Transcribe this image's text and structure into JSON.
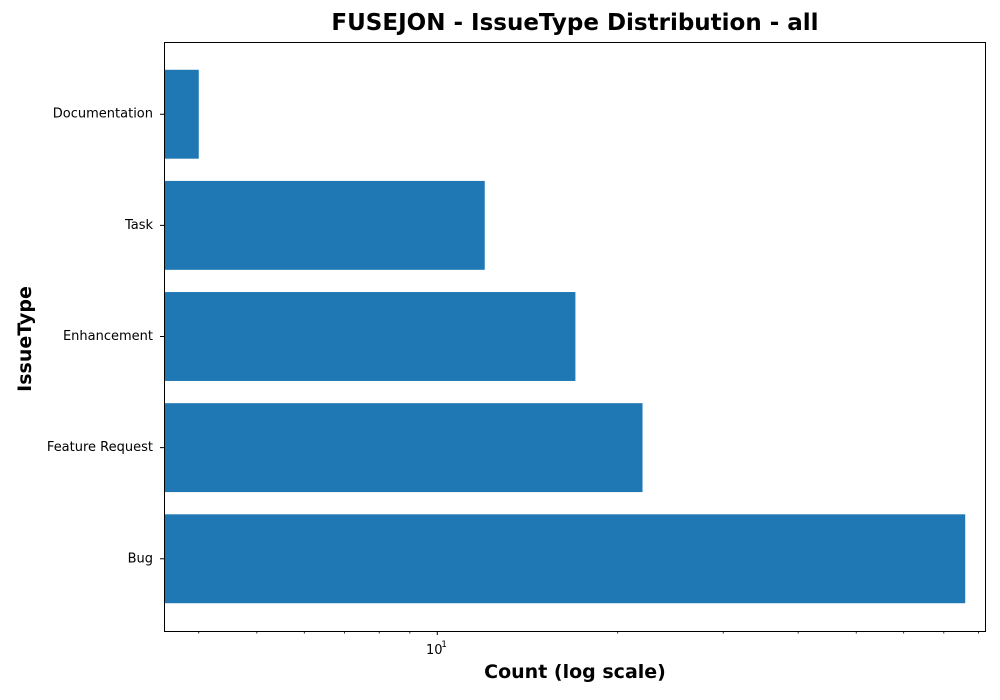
{
  "chart_data": {
    "type": "bar",
    "orientation": "horizontal",
    "title": "FUSEJON - IssueType Distribution - all",
    "xlabel": "Count (log scale)",
    "ylabel": "IssueType",
    "x_scale": "log",
    "xlim": [
      3.5,
      82
    ],
    "x_major_tick_label": {
      "base": "10",
      "exponent": "1",
      "value": 10
    },
    "x_minor_ticks": [
      4,
      5,
      6,
      7,
      8,
      9,
      20,
      30,
      40,
      50,
      60,
      70,
      80
    ],
    "categories": [
      "Bug",
      "Feature Request",
      "Enhancement",
      "Task",
      "Documentation"
    ],
    "values": [
      76,
      22,
      17,
      12,
      4
    ],
    "bar_color": "#1f77b4",
    "grid": false,
    "legend": "none"
  }
}
